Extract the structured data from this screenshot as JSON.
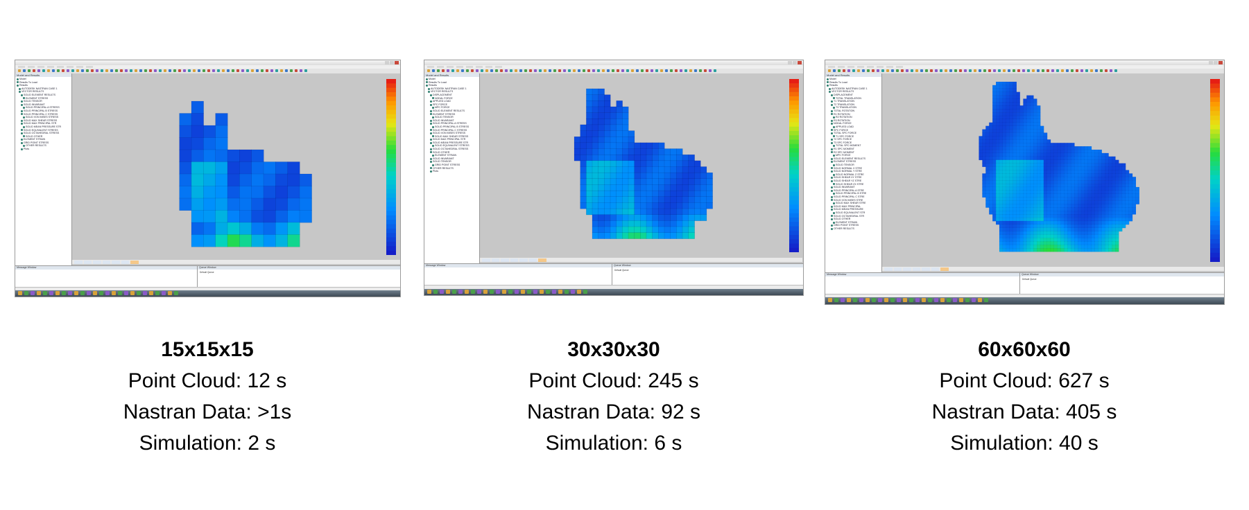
{
  "panels": [
    {
      "grid": "15x15x15",
      "point_cloud": "Point Cloud: 12 s",
      "nastran_data": "Nastran Data: >1s",
      "simulation": "Simulation: 2 s",
      "screenshot": {
        "message_window_label": "Message Window",
        "queue_window_label": "Queue Window",
        "queue_item": "Default Queue",
        "tree_header": "Model and Results",
        "tree_items": [
          "Model",
          "Results To Load",
          "Results",
          "AUTODESK NASTRAN CASE 1",
          "VECTOR RESULTS",
          "SOLID ELEMENT RESULTS",
          "ELEMENT STRESS",
          "SOLID TENSOR",
          "SOLID INVARIANT",
          "SOLID PRINCIPAL A STRESS",
          "SOLID PRINCIPAL B STRESS",
          "SOLID PRINCIPAL C STRESS",
          "SOLID VON MISES STRESS",
          "SOLID MAX SHEAR STRESS",
          "SOLID MAX PRINCIPAL STR",
          "SOLID MEAN PRESSURE STR",
          "SOLID EQUIVALENT STRESS",
          "SOLID OCTAHEDRAL STRESS",
          "SOLID OTHER",
          "ELEMENT STRAIN",
          "GRID POINT STRESS",
          "OTHER RESULTS",
          "Plots"
        ]
      }
    },
    {
      "grid": "30x30x30",
      "point_cloud": "Point Cloud: 245 s",
      "nastran_data": "Nastran Data: 92 s",
      "simulation": "Simulation: 6 s",
      "screenshot": {
        "message_window_label": "Message Window",
        "queue_window_label": "Queue Window",
        "queue_item": "Default Queue",
        "tree_header": "Model and Results",
        "tree_items": [
          "Model",
          "Results To Load",
          "Results",
          "AUTODESK NASTRAN CASE 1",
          "VECTOR RESULTS",
          "DISPLACEMENT",
          "NODAL FORCE",
          "APPLIED LOAD",
          "SPC FORCE",
          "MPC FORCE",
          "SOLID ELEMENT RESULTS",
          "ELEMENT STRESS",
          "SOLID TENSOR",
          "SOLID INVARIANT",
          "SOLID PRINCIPAL A STRESS",
          "SOLID PRINCIPAL B STRESS",
          "SOLID PRINCIPAL C STRESS",
          "SOLID VON MISES STRESS",
          "SOLID MAX SHEAR STRESS",
          "SOLID MAX PRINCIPAL STR",
          "SOLID MEAN PRESSURE STR",
          "SOLID EQUIVALENT STRESS",
          "SOLID OCTAHEDRAL STRESS",
          "SOLID OTHER",
          "ELEMENT STRAIN",
          "SOLID INVARIANT",
          "SOLID TENSOR",
          "GRID POINT STRESS",
          "OTHER RESULTS",
          "Plots"
        ]
      }
    },
    {
      "grid": "60x60x60",
      "point_cloud": "Point Cloud: 627 s",
      "nastran_data": "Nastran Data: 405 s",
      "simulation": "Simulation: 40 s",
      "screenshot": {
        "message_window_label": "Message Window",
        "queue_window_label": "Queue Window",
        "queue_item": "Default Queue",
        "tree_header": "Model and Results",
        "tree_items": [
          "Model",
          "Results To Load",
          "Results",
          "AUTODESK NASTRAN CASE 1",
          "VECTOR RESULTS",
          "DISPLACEMENT",
          "TOTAL TRANSLATION",
          "T1 TRANSLATION",
          "T2 TRANSLATION",
          "T3 TRANSLATION",
          "TOTAL ROTATION",
          "R1 ROTATION",
          "R2 ROTATION",
          "R3 ROTATION",
          "NODAL FORCE",
          "APPLIED LOAD",
          "SPC FORCE",
          "TOTAL SPC FORCE",
          "T1 SPC FORCE",
          "T2 SPC FORCE",
          "T3 SPC FORCE",
          "TOTAL SPC MOMENT",
          "R1 SPC MOMENT",
          "R2 SPC MOMENT",
          "MPC FORCE",
          "SOLID ELEMENT RESULTS",
          "ELEMENT STRESS",
          "SOLID TENSOR",
          "SOLID NORMAL X STRE",
          "SOLID NORMAL Y STRE",
          "SOLID NORMAL Z STRE",
          "SOLID SHEAR XY STRE",
          "SOLID SHEAR YZ STRE",
          "SOLID SHEAR ZX STRE",
          "SOLID INVARIANT",
          "SOLID PRINCIPAL A STRE",
          "SOLID PRINCIPAL B STRE",
          "SOLID PRINCIPAL C STRE",
          "SOLID VON MISES STRE",
          "SOLID MAX SHEAR STRE",
          "SOLID MAX PRINCIPAL",
          "SOLID MEAN PRESSURE",
          "SOLID EQUIVALENT STR",
          "SOLID OCTAHEDRAL STR",
          "SOLID OTHER",
          "ELEMENT STRAIN",
          "GRID POINT STRESS",
          "OTHER RESULTS"
        ]
      }
    }
  ],
  "colors": {
    "voxel_low": "#1428c8",
    "voxel_mid": "#00c8c8",
    "voxel_high": "#ffb400",
    "viewport_bg": "#c7c7c7"
  },
  "icons": [
    "autodesk-icon",
    "windows-taskbar-icon"
  ]
}
